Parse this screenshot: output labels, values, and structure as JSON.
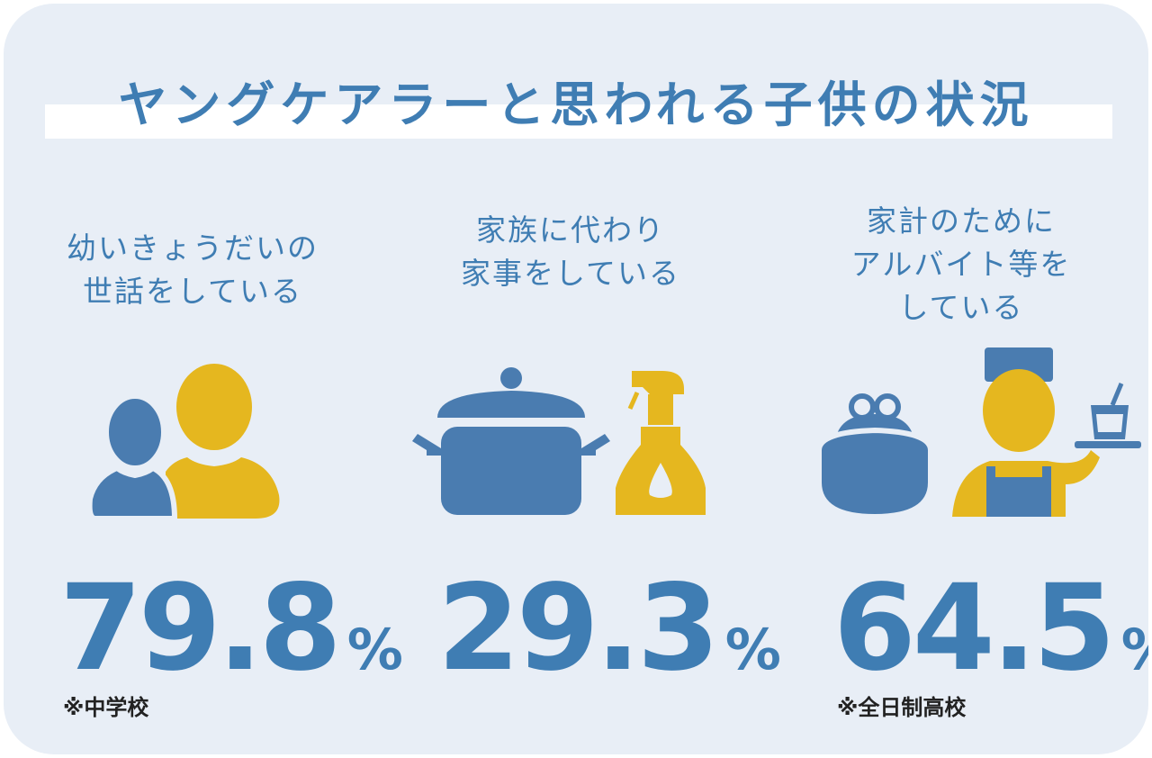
{
  "title": "ヤングケアラーと思われる子供の状況",
  "colors": {
    "blue": "#3f7db3",
    "yellow": "#e5b71f",
    "background": "#e8eef6"
  },
  "items": [
    {
      "label_lines": [
        "幼いきょうだいの",
        "世話をしている"
      ],
      "value": "79.8",
      "unit": "%",
      "note": "※中学校",
      "icon": "two-people-icon"
    },
    {
      "label_lines": [
        "家族に代わり",
        "家事をしている"
      ],
      "value": "29.3",
      "unit": "%",
      "note": "",
      "icon": "pot-and-spray-icon"
    },
    {
      "label_lines": [
        "家計のために",
        "アルバイト等を",
        "している"
      ],
      "value": "64.5",
      "unit": "%",
      "note": "※全日制高校",
      "icon": "purse-and-waiter-icon"
    }
  ]
}
